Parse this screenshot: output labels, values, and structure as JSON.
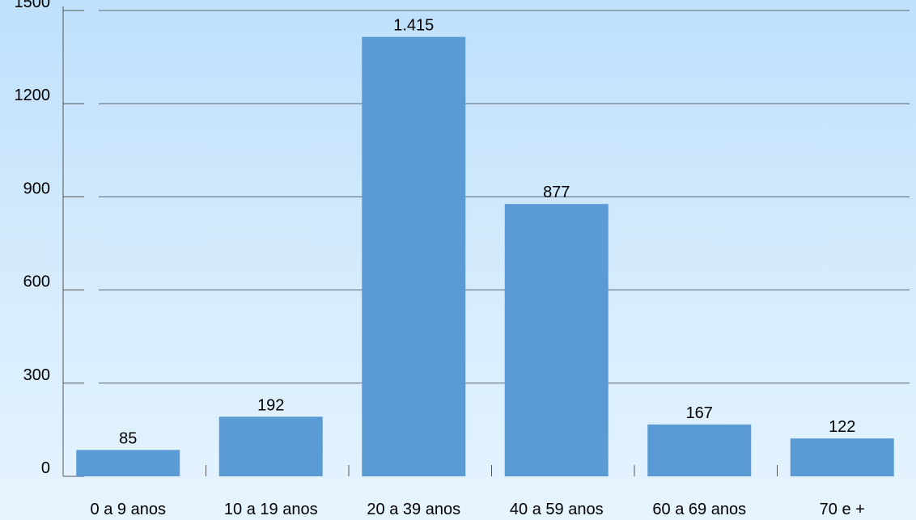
{
  "chart_data": {
    "type": "bar",
    "categories": [
      "0 a 9 anos",
      "10 a 19 anos",
      "20 a 39 anos",
      "40 a 59 anos",
      "60 a 69 anos",
      "70 e +"
    ],
    "values": [
      85,
      192,
      1415,
      877,
      167,
      122
    ],
    "value_labels": [
      "85",
      "192",
      "1.415",
      "877",
      "167",
      "122"
    ],
    "yticks": [
      0,
      300,
      600,
      900,
      1200,
      1500
    ],
    "ytick_labels": [
      "0",
      "300",
      "600",
      "900",
      "1200",
      "1500"
    ],
    "ylim": [
      0,
      1500
    ],
    "title": "",
    "xlabel": "",
    "ylabel": "",
    "grid": true,
    "legend": "none",
    "colors": {
      "bar": "#5b9bd5",
      "grid": "#5a6570",
      "axis": "#555555"
    }
  }
}
